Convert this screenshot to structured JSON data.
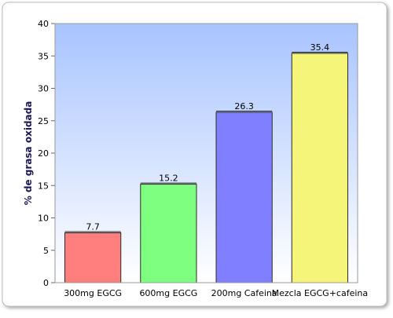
{
  "chart_data": {
    "type": "bar",
    "title": "",
    "xlabel": "",
    "ylabel": "% de grasa oxidada",
    "ylim": [
      0,
      40
    ],
    "yticks": [
      0,
      5,
      10,
      15,
      20,
      25,
      30,
      35,
      40
    ],
    "grid": false,
    "categories": [
      "300mg EGCG",
      "600mg EGCG",
      "200mg Cafeina",
      "Mezcla EGCG+cafeina"
    ],
    "values": [
      7.7,
      15.2,
      26.3,
      35.4
    ],
    "data_labels": [
      "7.7",
      "15.2",
      "26.3",
      "35.4"
    ],
    "colors": [
      "#ff7f7f",
      "#7fff7f",
      "#7f7fff",
      "#f5f57a"
    ],
    "plot_background": [
      "#ffffff",
      "#a8c4ff"
    ],
    "frame_color": "#9a9a9a"
  }
}
